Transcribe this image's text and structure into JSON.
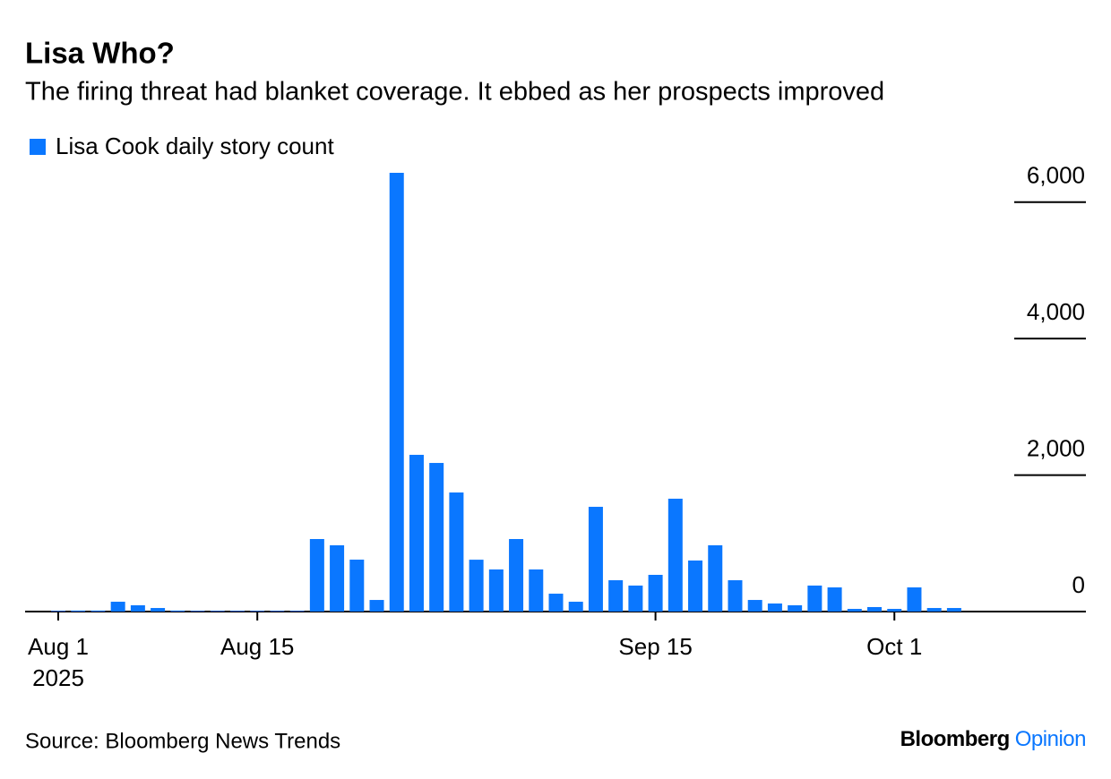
{
  "chart_data": {
    "type": "bar",
    "title": "Lisa Who?",
    "subtitle": "The firing threat had blanket coverage. It ebbed as her prospects improved",
    "source": "Source: Bloomberg News Trends",
    "brand": "Bloomberg",
    "brand_suffix": "Opinion",
    "year_label": "2025",
    "categories": [
      "Aug 1",
      null,
      null,
      null,
      null,
      null,
      null,
      null,
      null,
      null,
      "Aug 15",
      null,
      null,
      null,
      null,
      null,
      null,
      null,
      null,
      null,
      null,
      null,
      null,
      null,
      null,
      null,
      null,
      null,
      null,
      null,
      "Sep 15",
      null,
      null,
      null,
      null,
      null,
      null,
      null,
      null,
      null,
      null,
      null,
      "Oct 1",
      null,
      null,
      null
    ],
    "series": [
      {
        "name": "Lisa Cook daily story count",
        "color": "#0a77ff",
        "values": [
          10,
          15,
          15,
          144,
          92,
          52,
          15,
          10,
          10,
          10,
          10,
          10,
          10,
          1063,
          971,
          761,
          170,
          6430,
          2297,
          2178,
          1745,
          760,
          617,
          1063,
          617,
          262,
          144,
          1535,
          459,
          381,
          538,
          1654,
          748,
          971,
          459,
          170,
          118,
          92,
          381,
          354,
          39,
          66,
          39,
          354,
          52,
          52
        ]
      }
    ],
    "ylim": [
      0,
      6430
    ],
    "yticks": [
      0,
      {
        "value": 2000,
        "label": "2,000"
      },
      {
        "value": 4000,
        "label": "4,000"
      },
      {
        "value": 6000,
        "label": "6,000"
      }
    ],
    "grid": false
  }
}
